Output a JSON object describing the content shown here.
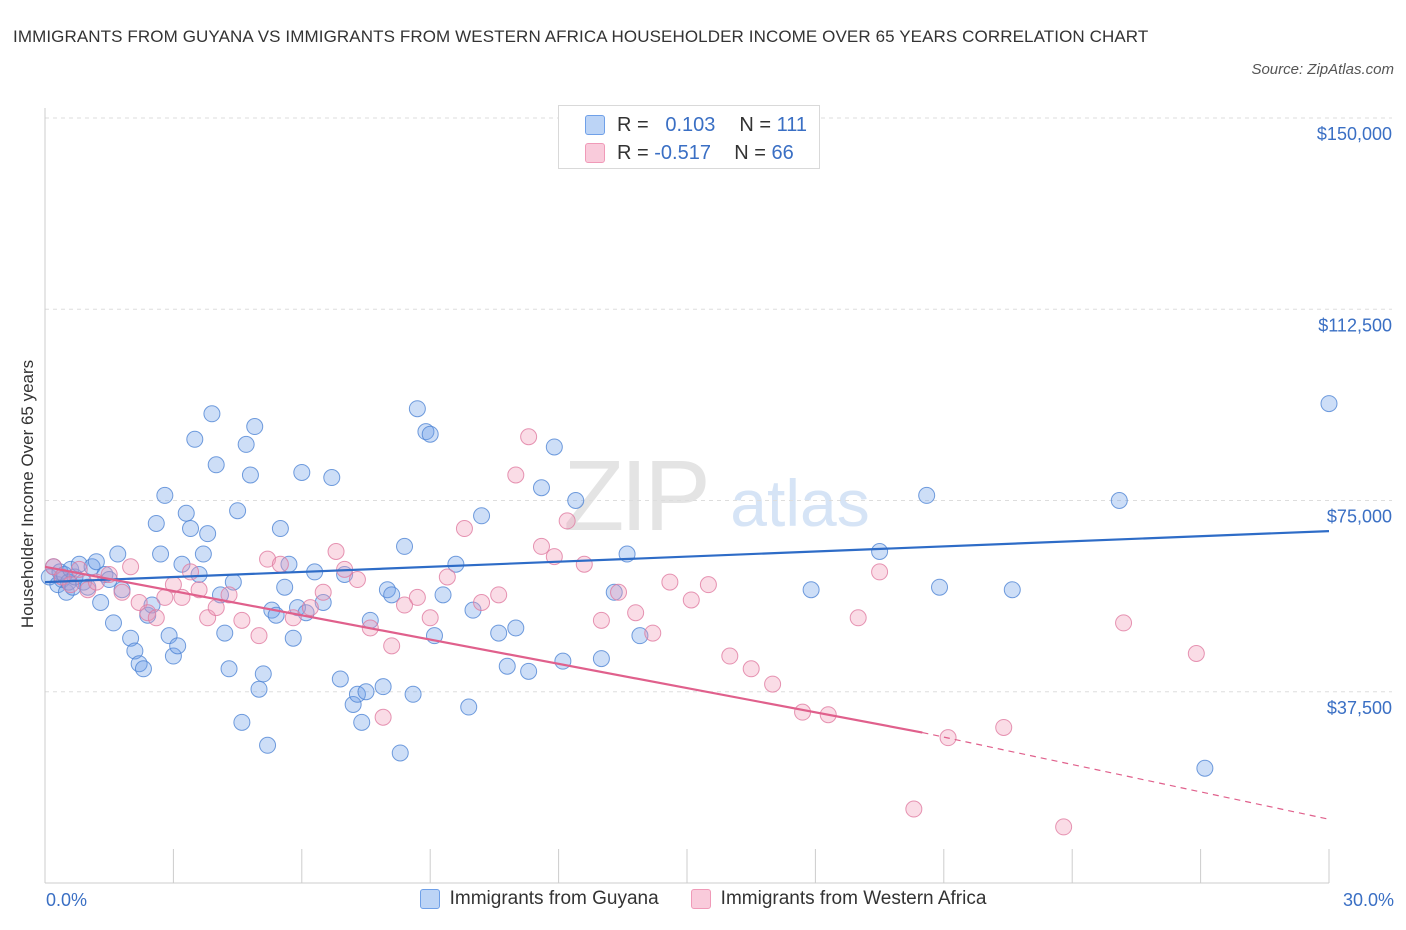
{
  "title": "IMMIGRANTS FROM GUYANA VS IMMIGRANTS FROM WESTERN AFRICA HOUSEHOLDER INCOME OVER 65 YEARS CORRELATION CHART",
  "source": "Source: ZipAtlas.com",
  "watermark": {
    "zip": "ZIP",
    "atlas": "atlas"
  },
  "legend": {
    "rows": [
      {
        "r_label": "R =",
        "r_value": "0.103",
        "n_label": "N =",
        "n_value": "111",
        "color": "#6fa0e8"
      },
      {
        "r_label": "R =",
        "r_value": "-0.517",
        "n_label": "N =",
        "n_value": "66",
        "color": "#f09ab8"
      }
    ]
  },
  "bottom_legend": [
    "Immigrants from Guyana",
    "Immigrants from Western Africa"
  ],
  "chart_data": {
    "type": "scatter",
    "ylabel": "Householder Income Over 65 years",
    "x_tick_labels": [
      "0.0%",
      "30.0%"
    ],
    "y_tick_labels": [
      "$150,000",
      "$112,500",
      "$75,000",
      "$37,500"
    ],
    "y_ticks": [
      150000,
      112500,
      75000,
      37500
    ],
    "xlim": [
      0,
      30
    ],
    "ylim": [
      0,
      150000
    ],
    "series": [
      {
        "name": "Immigrants from Guyana",
        "color": "#6fa0e8",
        "stroke": "#4f84d4",
        "trend": {
          "x": [
            0,
            30
          ],
          "y": [
            59000,
            69000
          ],
          "color": "#2e6cc7"
        },
        "points": [
          [
            0.1,
            60000
          ],
          [
            0.2,
            62000
          ],
          [
            0.3,
            58500
          ],
          [
            0.35,
            61000
          ],
          [
            0.4,
            59500
          ],
          [
            0.45,
            60500
          ],
          [
            0.5,
            57000
          ],
          [
            0.55,
            59000
          ],
          [
            0.6,
            61500
          ],
          [
            0.65,
            58000
          ],
          [
            0.7,
            60000
          ],
          [
            0.8,
            62500
          ],
          [
            0.9,
            59000
          ],
          [
            1.0,
            58000
          ],
          [
            1.1,
            62000
          ],
          [
            1.2,
            63000
          ],
          [
            1.3,
            55000
          ],
          [
            1.4,
            60500
          ],
          [
            1.5,
            59500
          ],
          [
            1.6,
            51000
          ],
          [
            1.7,
            64500
          ],
          [
            1.8,
            57500
          ],
          [
            2.0,
            48000
          ],
          [
            2.1,
            45500
          ],
          [
            2.2,
            43000
          ],
          [
            2.3,
            42000
          ],
          [
            2.4,
            52500
          ],
          [
            2.5,
            54500
          ],
          [
            2.6,
            70500
          ],
          [
            2.7,
            64500
          ],
          [
            2.8,
            76000
          ],
          [
            2.9,
            48500
          ],
          [
            3.0,
            44500
          ],
          [
            3.1,
            46500
          ],
          [
            3.2,
            62500
          ],
          [
            3.3,
            72500
          ],
          [
            3.4,
            69500
          ],
          [
            3.5,
            87000
          ],
          [
            3.6,
            60500
          ],
          [
            3.7,
            64500
          ],
          [
            3.8,
            68500
          ],
          [
            3.9,
            92000
          ],
          [
            4.0,
            82000
          ],
          [
            4.1,
            56500
          ],
          [
            4.2,
            49000
          ],
          [
            4.3,
            42000
          ],
          [
            4.4,
            59000
          ],
          [
            4.5,
            73000
          ],
          [
            4.6,
            31500
          ],
          [
            4.7,
            86000
          ],
          [
            4.8,
            80000
          ],
          [
            4.9,
            89500
          ],
          [
            5.0,
            38000
          ],
          [
            5.1,
            41000
          ],
          [
            5.2,
            27000
          ],
          [
            5.3,
            53500
          ],
          [
            5.4,
            52500
          ],
          [
            5.5,
            69500
          ],
          [
            5.6,
            58000
          ],
          [
            5.7,
            62500
          ],
          [
            5.8,
            48000
          ],
          [
            5.9,
            54000
          ],
          [
            6.0,
            80500
          ],
          [
            6.1,
            53000
          ],
          [
            6.3,
            61000
          ],
          [
            6.5,
            55000
          ],
          [
            6.7,
            79500
          ],
          [
            6.9,
            40000
          ],
          [
            7.0,
            60500
          ],
          [
            7.2,
            35000
          ],
          [
            7.3,
            37000
          ],
          [
            7.4,
            31500
          ],
          [
            7.5,
            37500
          ],
          [
            7.6,
            51500
          ],
          [
            7.9,
            38500
          ],
          [
            8.0,
            57500
          ],
          [
            8.1,
            56500
          ],
          [
            8.3,
            25500
          ],
          [
            8.4,
            66000
          ],
          [
            8.6,
            37000
          ],
          [
            8.7,
            93000
          ],
          [
            8.9,
            88500
          ],
          [
            9.0,
            88000
          ],
          [
            9.1,
            48500
          ],
          [
            9.3,
            56500
          ],
          [
            9.6,
            62500
          ],
          [
            9.9,
            34500
          ],
          [
            10.0,
            53500
          ],
          [
            10.2,
            72000
          ],
          [
            10.6,
            49000
          ],
          [
            10.8,
            42500
          ],
          [
            11.0,
            50000
          ],
          [
            11.3,
            41500
          ],
          [
            11.6,
            77500
          ],
          [
            11.9,
            85500
          ],
          [
            12.1,
            43500
          ],
          [
            12.4,
            75000
          ],
          [
            13.0,
            44000
          ],
          [
            13.3,
            57000
          ],
          [
            13.6,
            64500
          ],
          [
            13.9,
            48500
          ],
          [
            17.9,
            57500
          ],
          [
            19.5,
            65000
          ],
          [
            20.6,
            76000
          ],
          [
            20.9,
            58000
          ],
          [
            22.6,
            57500
          ],
          [
            25.1,
            75000
          ],
          [
            27.1,
            22500
          ],
          [
            30.0,
            94000
          ]
        ]
      },
      {
        "name": "Immigrants from Western Africa",
        "color": "#f09ab8",
        "stroke": "#e07aa0",
        "trend": {
          "x": [
            0,
            20.5
          ],
          "y": [
            62000,
            29500
          ],
          "color": "#e0608c",
          "dash_x": [
            20.5,
            30
          ],
          "dash_y": [
            29500,
            12500
          ]
        },
        "points": [
          [
            0.2,
            62000
          ],
          [
            0.4,
            60000
          ],
          [
            0.6,
            58500
          ],
          [
            0.8,
            61500
          ],
          [
            1.0,
            57500
          ],
          [
            1.2,
            59000
          ],
          [
            1.5,
            60500
          ],
          [
            1.8,
            57000
          ],
          [
            2.0,
            62000
          ],
          [
            2.2,
            55000
          ],
          [
            2.4,
            53000
          ],
          [
            2.6,
            52000
          ],
          [
            2.8,
            56000
          ],
          [
            3.0,
            58500
          ],
          [
            3.2,
            56000
          ],
          [
            3.4,
            61000
          ],
          [
            3.6,
            57500
          ],
          [
            3.8,
            52000
          ],
          [
            4.0,
            54000
          ],
          [
            4.3,
            56500
          ],
          [
            4.6,
            51500
          ],
          [
            5.0,
            48500
          ],
          [
            5.2,
            63500
          ],
          [
            5.5,
            62500
          ],
          [
            5.8,
            52000
          ],
          [
            6.2,
            54000
          ],
          [
            6.5,
            57000
          ],
          [
            6.8,
            65000
          ],
          [
            7.0,
            61500
          ],
          [
            7.3,
            59500
          ],
          [
            7.6,
            50000
          ],
          [
            7.9,
            32500
          ],
          [
            8.1,
            46500
          ],
          [
            8.4,
            54500
          ],
          [
            8.7,
            56000
          ],
          [
            9.0,
            52000
          ],
          [
            9.4,
            60000
          ],
          [
            9.8,
            69500
          ],
          [
            10.2,
            55000
          ],
          [
            10.6,
            56500
          ],
          [
            11.0,
            80000
          ],
          [
            11.3,
            87500
          ],
          [
            11.6,
            66000
          ],
          [
            11.9,
            64000
          ],
          [
            12.2,
            71000
          ],
          [
            12.6,
            62500
          ],
          [
            13.0,
            51500
          ],
          [
            13.4,
            57000
          ],
          [
            13.8,
            53000
          ],
          [
            14.2,
            49000
          ],
          [
            14.6,
            59000
          ],
          [
            15.1,
            55500
          ],
          [
            15.5,
            58500
          ],
          [
            16.0,
            44500
          ],
          [
            16.5,
            42000
          ],
          [
            17.0,
            39000
          ],
          [
            17.7,
            33500
          ],
          [
            18.3,
            33000
          ],
          [
            19.0,
            52000
          ],
          [
            19.5,
            61000
          ],
          [
            20.3,
            14500
          ],
          [
            21.1,
            28500
          ],
          [
            22.4,
            30500
          ],
          [
            23.8,
            11000
          ],
          [
            25.2,
            51000
          ],
          [
            26.9,
            45000
          ]
        ]
      }
    ]
  }
}
